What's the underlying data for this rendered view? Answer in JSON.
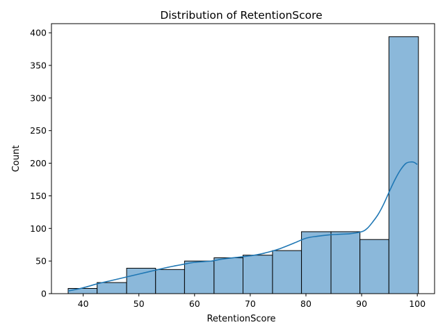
{
  "chart_data": {
    "type": "bar",
    "title": "Distribution of RetentionScore",
    "xlabel": "RetentionScore",
    "ylabel": "Count",
    "xlim": [
      34.3,
      103.1
    ],
    "ylim": [
      0,
      414
    ],
    "xticks": [
      40,
      50,
      60,
      70,
      80,
      90,
      100
    ],
    "yticks": [
      0,
      50,
      100,
      150,
      200,
      250,
      300,
      350,
      400
    ],
    "grid": false,
    "bar_color": "#8bb8da",
    "edge_color": "#000000",
    "kde_color": "#1f77b4",
    "bins": [
      {
        "start": 37.3,
        "end": 42.5,
        "count": 8
      },
      {
        "start": 42.5,
        "end": 47.8,
        "count": 17
      },
      {
        "start": 47.8,
        "end": 53.0,
        "count": 39
      },
      {
        "start": 53.0,
        "end": 58.2,
        "count": 37
      },
      {
        "start": 58.2,
        "end": 63.5,
        "count": 50
      },
      {
        "start": 63.5,
        "end": 68.7,
        "count": 55
      },
      {
        "start": 68.7,
        "end": 74.0,
        "count": 59
      },
      {
        "start": 74.0,
        "end": 79.2,
        "count": 66
      },
      {
        "start": 79.2,
        "end": 84.5,
        "count": 95
      },
      {
        "start": 84.5,
        "end": 89.7,
        "count": 95
      },
      {
        "start": 89.7,
        "end": 94.9,
        "count": 83
      },
      {
        "start": 94.9,
        "end": 100.2,
        "count": 394
      }
    ],
    "kde": {
      "x": [
        37.3,
        40,
        42.5,
        45,
        48,
        50,
        53,
        55,
        58,
        60,
        63,
        65,
        68,
        70,
        72,
        75,
        78,
        80,
        82,
        84,
        86,
        88,
        90,
        91,
        92,
        93,
        94,
        95,
        96,
        97,
        98,
        99,
        99.5,
        100
      ],
      "y": [
        4,
        9,
        15,
        20,
        26,
        30,
        36,
        40,
        45,
        48,
        50,
        53,
        56,
        58,
        61,
        68,
        78,
        85,
        88,
        90,
        91,
        92,
        95,
        100,
        110,
        122,
        138,
        157,
        175,
        190,
        200,
        202,
        201,
        198
      ]
    }
  }
}
